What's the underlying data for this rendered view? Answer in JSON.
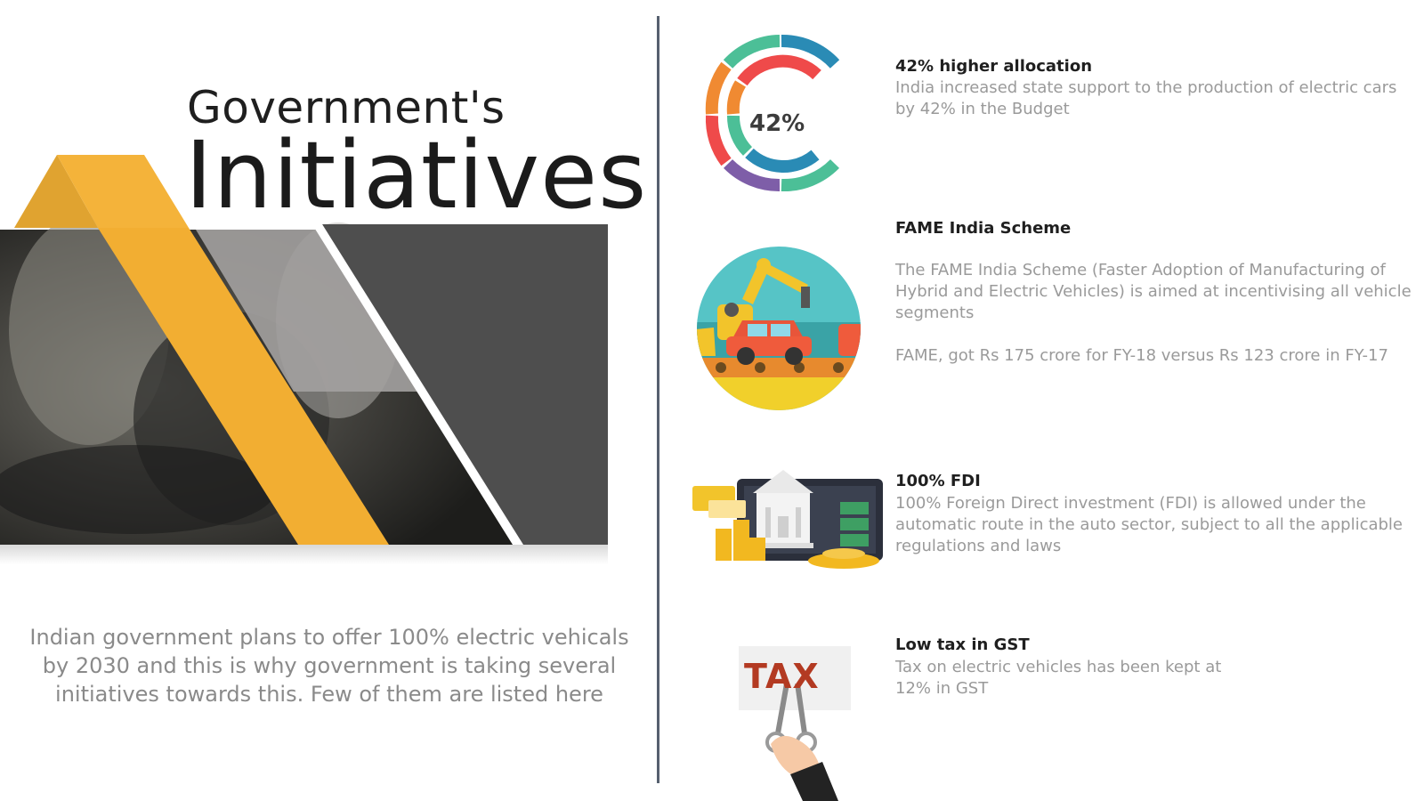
{
  "left": {
    "title_top": "Government's",
    "title_main": "Initiatives",
    "intro": "Indian government plans to offer 100% electric vehicals by 2030 and this is why government is taking several initiatives towards this. Few of them are listed here"
  },
  "items": [
    {
      "title": "42% higher allocation",
      "text": "India increased state support to the production of electric cars by 42% in the Budget",
      "icon_label": "42%",
      "icon": "donut-chart-icon"
    },
    {
      "title": "FAME India Scheme",
      "text": "The FAME India Scheme (Faster Adoption of Manufacturing of Hybrid and Electric Vehicles) is aimed at incentivising all vehicle segments",
      "text2": "FAME, got Rs 175 crore for FY-18 versus Rs 123 crore in FY-17",
      "icon": "car-factory-robot-icon"
    },
    {
      "title": "100% FDI",
      "text": "100% Foreign Direct investment (FDI) is allowed under the automatic route in the auto sector, subject to all the applicable regulations and laws",
      "icon": "bank-money-coins-icon"
    },
    {
      "title": "Low tax in GST",
      "text": "Tax on electric vehicles has been kept at 12% in GST",
      "icon_label": "TAX",
      "icon": "tax-scissors-hand-icon"
    }
  ],
  "colors": {
    "accent_yellow": "#f2ae32",
    "dark_gray": "#4e4e4e",
    "divider": "#56606f",
    "text_gray": "#9a9a9a"
  }
}
